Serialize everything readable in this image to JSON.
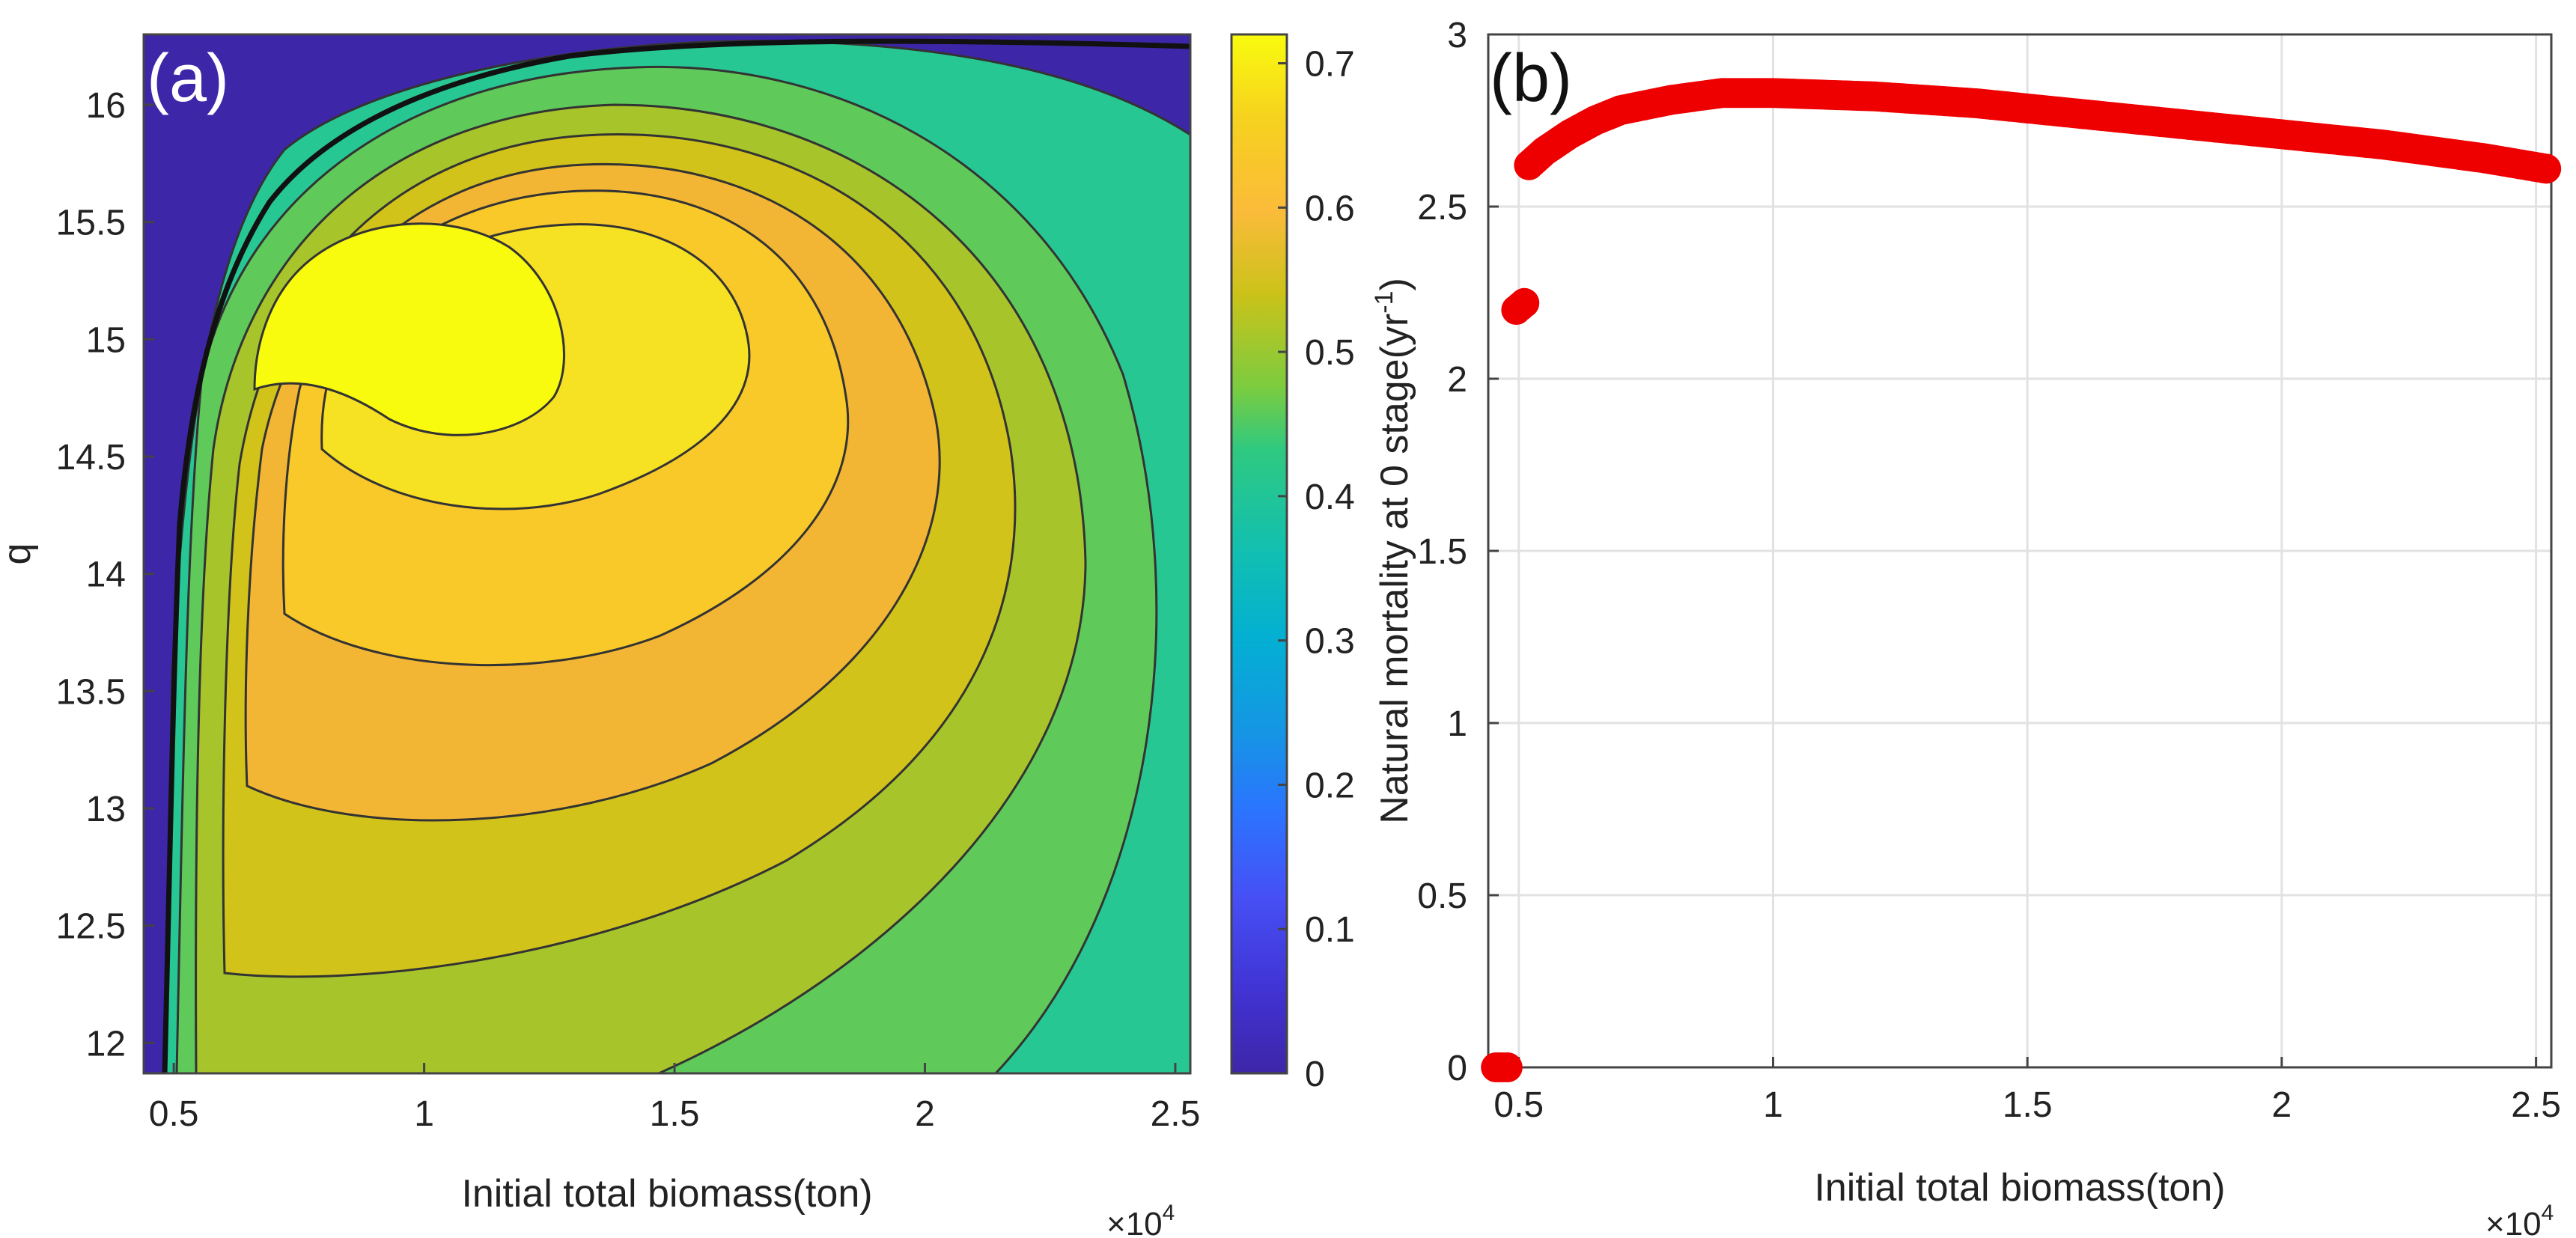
{
  "chart_data": [
    {
      "type": "contour",
      "panel_label": "(a)",
      "xlabel": "Initial total biomass(ton)",
      "ylabel": "q",
      "x_multiplier": "×10",
      "x_multiplier_exp": "4",
      "xlim": [
        0.44,
        2.53
      ],
      "ylim": [
        11.87,
        16.3
      ],
      "xticks": [
        0.5,
        1,
        1.5,
        2,
        2.5
      ],
      "xtick_labels": [
        "0.5",
        "1",
        "1.5",
        "2",
        "2.5"
      ],
      "yticks": [
        12,
        12.5,
        13,
        13.5,
        14,
        14.5,
        15,
        15.5,
        16
      ],
      "ytick_labels": [
        "12",
        "12.5",
        "13",
        "13.5",
        "14",
        "14.5",
        "15",
        "15.5",
        "16"
      ],
      "colorbar": {
        "min": 0,
        "max": 0.72,
        "ticks": [
          0,
          0.1,
          0.2,
          0.3,
          0.4,
          0.5,
          0.6,
          0.7
        ],
        "tick_labels": [
          "0",
          "0.1",
          "0.2",
          "0.3",
          "0.4",
          "0.5",
          "0.6",
          "0.7"
        ],
        "colormap": "parula"
      },
      "peak": {
        "x": 1.05,
        "y": 15.0,
        "value": 0.72
      },
      "contour_levels": [
        0.42,
        0.46,
        0.5,
        0.54,
        0.58,
        0.62,
        0.66,
        0.7
      ]
    },
    {
      "type": "scatter",
      "panel_label": "(b)",
      "xlabel": "Initial total biomass(ton)",
      "ylabel_main": "Natural mortality at 0 stage(yr",
      "ylabel_sup": "-1",
      "ylabel_end": ")",
      "x_multiplier": "×10",
      "x_multiplier_exp": "4",
      "xlim": [
        0.44,
        2.53
      ],
      "ylim": [
        0,
        3
      ],
      "xticks": [
        0.5,
        1,
        1.5,
        2,
        2.5
      ],
      "xtick_labels": [
        "0.5",
        "1",
        "1.5",
        "2",
        "2.5"
      ],
      "yticks": [
        0,
        0.5,
        1,
        1.5,
        2,
        2.5,
        3
      ],
      "ytick_labels": [
        "0",
        "0.5",
        "1",
        "1.5",
        "2",
        "2.5",
        "3"
      ],
      "grid": true,
      "series": [
        {
          "name": "Natural mortality",
          "color": "#ee0000",
          "points": [
            [
              0.455,
              0
            ],
            [
              0.462,
              0
            ],
            [
              0.47,
              0
            ],
            [
              0.478,
              0
            ],
            [
              0.495,
              2.2
            ],
            [
              0.503,
              2.21
            ],
            [
              0.511,
              2.22
            ],
            [
              0.52,
              2.62
            ],
            [
              0.55,
              2.66
            ],
            [
              0.6,
              2.71
            ],
            [
              0.65,
              2.75
            ],
            [
              0.7,
              2.78
            ],
            [
              0.8,
              2.81
            ],
            [
              0.9,
              2.83
            ],
            [
              1.0,
              2.83
            ],
            [
              1.2,
              2.82
            ],
            [
              1.4,
              2.8
            ],
            [
              1.6,
              2.77
            ],
            [
              1.8,
              2.74
            ],
            [
              2.0,
              2.71
            ],
            [
              2.2,
              2.68
            ],
            [
              2.4,
              2.64
            ],
            [
              2.52,
              2.61
            ]
          ]
        }
      ]
    }
  ]
}
